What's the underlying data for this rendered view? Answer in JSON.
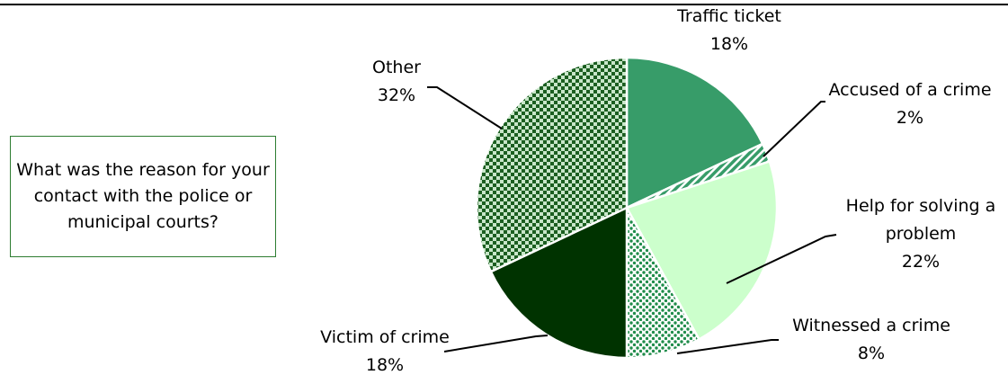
{
  "question": {
    "text": "What was the reason for your contact with the police or municipal courts?"
  },
  "chart_data": {
    "type": "pie",
    "start_angle_deg": 0,
    "direction": "clockwise",
    "slices": [
      {
        "label_lines": [
          "Traffic ticket"
        ],
        "value": 18,
        "value_label": "18%",
        "color": "#379c69",
        "pattern": "solid"
      },
      {
        "label_lines": [
          "Accused of a crime"
        ],
        "value": 2,
        "value_label": "2%",
        "color": "#379c69",
        "pattern": "diagonal-stripes"
      },
      {
        "label_lines": [
          "Help for solving a",
          "problem"
        ],
        "value": 22,
        "value_label": "22%",
        "color": "#ccffcc",
        "pattern": "solid"
      },
      {
        "label_lines": [
          "Witnessed a crime"
        ],
        "value": 8,
        "value_label": "8%",
        "color": "#1f8c4a",
        "pattern": "dots"
      },
      {
        "label_lines": [
          "Victim of crime"
        ],
        "value": 18,
        "value_label": "18%",
        "color": "#003300",
        "pattern": "solid"
      },
      {
        "label_lines": [
          "Other"
        ],
        "value": 32,
        "value_label": "32%",
        "color": "#2e8b57",
        "pattern": "checkerboard"
      }
    ]
  }
}
